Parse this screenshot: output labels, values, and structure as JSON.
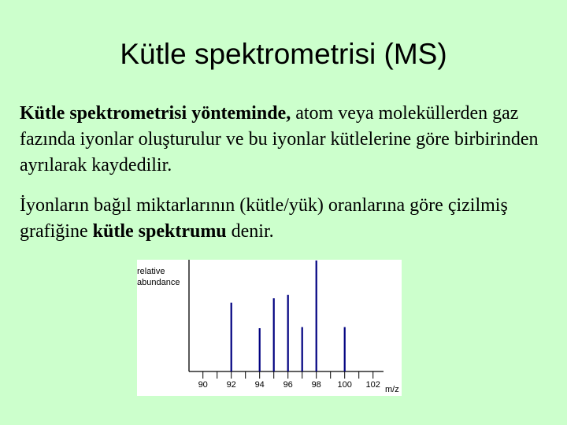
{
  "title": "Kütle spektrometrisi (MS)",
  "p1": {
    "bold": "Kütle spektrometrisi yönteminde,",
    "rest": " atom veya moleküllerden gaz fazında iyonlar oluşturulur ve bu iyonlar kütlelerine göre birbirinden ayrılarak kaydedilir."
  },
  "p2": {
    "a": "İyonların bağıl miktarlarının (kütle/yük) oranlarına göre çizilmiş grafiğine ",
    "bold": "kütle spektrumu",
    "b": " denir."
  },
  "chart_data": {
    "type": "bar",
    "ylabel_line1": "relative",
    "ylabel_line2": "abundance",
    "xlabel": "m/z",
    "x": [
      92,
      94,
      95,
      96,
      97,
      98,
      100
    ],
    "values": [
      62,
      39,
      66,
      69,
      40,
      100,
      40
    ],
    "xticks": [
      90,
      91,
      92,
      93,
      94,
      95,
      96,
      97,
      98,
      99,
      100,
      101,
      102
    ],
    "xtick_labels": [
      "90",
      "92",
      "94",
      "96",
      "98",
      "100",
      "102"
    ],
    "xlim": [
      89,
      103.5
    ],
    "ylim": [
      0,
      100
    ],
    "bar_color": "#000080"
  }
}
